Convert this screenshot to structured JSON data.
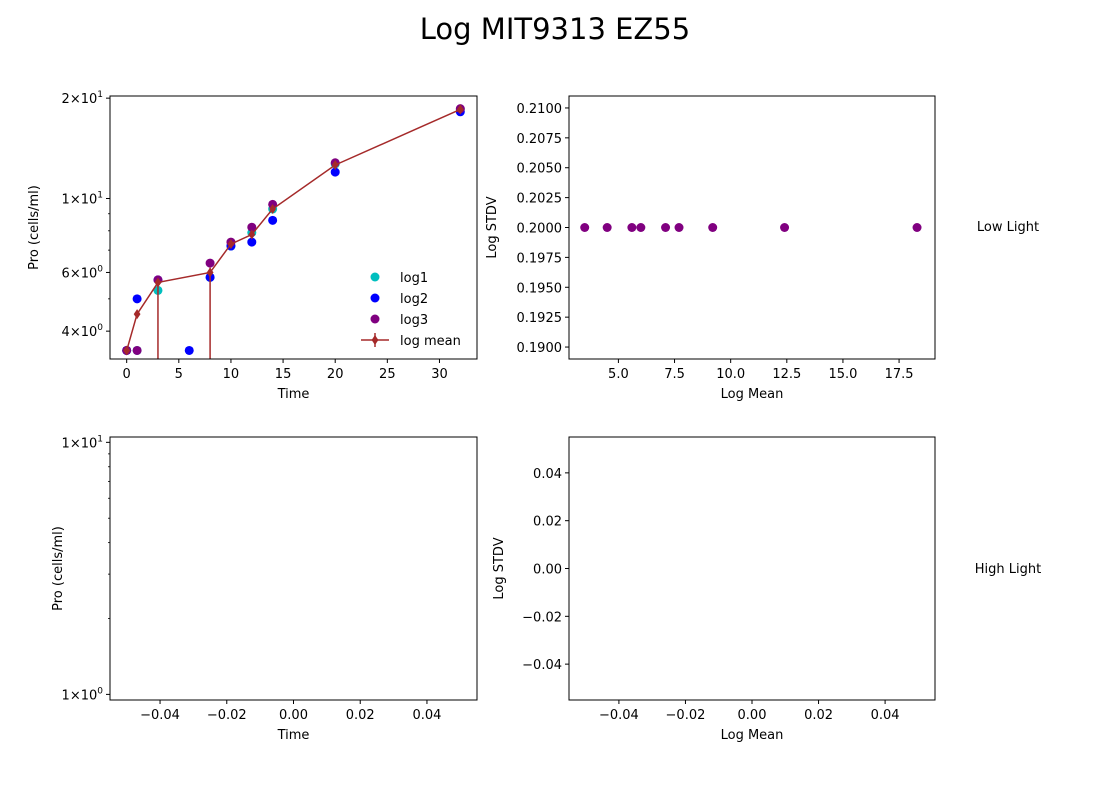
{
  "title": "Log MIT9313 EZ55",
  "chart_data": [
    {
      "type": "scatter",
      "xlabel": "Time",
      "ylabel": "Pro (cells/ml)",
      "yscale": "log",
      "xlim": [
        -1.6,
        33.6
      ],
      "ylim": [
        3.3,
        20.3
      ],
      "xticks": [
        0,
        5,
        10,
        15,
        20,
        25,
        30
      ],
      "xtick_labels": [
        "0",
        "5",
        "10",
        "15",
        "20",
        "25",
        "30"
      ],
      "yticks": [
        4,
        6,
        10,
        20
      ],
      "ytick_labels": [
        [
          "4",
          "0"
        ],
        [
          "6",
          "0"
        ],
        [
          "1",
          "1"
        ],
        [
          "2",
          "1"
        ]
      ],
      "legend": {
        "position": "lower-right",
        "entries": [
          "log1",
          "log2",
          " log3",
          "log mean"
        ]
      },
      "series": [
        {
          "name": "log1",
          "color": "#00bfbf",
          "marker": "circle",
          "x": [
            0,
            1,
            3,
            8,
            10,
            12,
            14,
            20,
            32
          ],
          "y": [
            3.5,
            3.5,
            5.3,
            5.8,
            7.2,
            7.9,
            9.3,
            12.7,
            18.5
          ]
        },
        {
          "name": "log2",
          "color": "#0000ff",
          "marker": "circle",
          "x": [
            0,
            1,
            3,
            6,
            8,
            10,
            12,
            14,
            20,
            32
          ],
          "y": [
            3.5,
            5.0,
            5.7,
            3.5,
            5.8,
            7.2,
            7.4,
            8.6,
            12.0,
            18.2
          ]
        },
        {
          "name": " log3",
          "color": "#800080",
          "marker": "circle",
          "x": [
            0,
            1,
            3,
            8,
            10,
            12,
            14,
            20,
            32
          ],
          "y": [
            3.5,
            3.5,
            5.7,
            6.4,
            7.4,
            8.2,
            9.6,
            12.8,
            18.6
          ]
        },
        {
          "name": "log mean",
          "color": "#a52a2a",
          "marker": "diamond",
          "line": true,
          "x": [
            0,
            1,
            3,
            8,
            10,
            12,
            14,
            20,
            32
          ],
          "y": [
            3.5,
            4.5,
            5.6,
            6.0,
            7.3,
            7.8,
            9.3,
            12.6,
            18.5
          ],
          "errorbars": [
            [
              0,
              3.4,
              3.6
            ],
            [
              3,
              3.3,
              5.7
            ],
            [
              8,
              3.3,
              6.2
            ]
          ]
        }
      ]
    },
    {
      "type": "scatter",
      "xlabel": "Log Mean",
      "ylabel": "Log STDV",
      "xlim": [
        2.8,
        19.1
      ],
      "ylim": [
        0.189,
        0.211
      ],
      "xticks": [
        5.0,
        7.5,
        10.0,
        12.5,
        15.0,
        17.5
      ],
      "xtick_labels": [
        "5.0",
        "7.5",
        "10.0",
        "12.5",
        "15.0",
        "17.5"
      ],
      "yticks": [
        0.19,
        0.1925,
        0.195,
        0.1975,
        0.2,
        0.2025,
        0.205,
        0.2075,
        0.21
      ],
      "ytick_labels": [
        "0.1900",
        "0.1925",
        "0.1950",
        "0.1975",
        "0.2000",
        "0.2025",
        "0.2050",
        "0.2075",
        "0.2100"
      ],
      "series": [
        {
          "color": "#800080",
          "marker": "circle",
          "x": [
            3.5,
            4.5,
            5.6,
            6.0,
            7.1,
            7.7,
            9.2,
            12.4,
            18.3
          ],
          "y": [
            0.2,
            0.2,
            0.2,
            0.2,
            0.2,
            0.2,
            0.2,
            0.2,
            0.2
          ]
        }
      ]
    },
    {
      "type": "scatter",
      "xlabel": "Time",
      "ylabel": "Pro (cells/ml)",
      "yscale": "log",
      "xlim": [
        -0.055,
        0.055
      ],
      "ylim": [
        0.95,
        10.5
      ],
      "xticks": [
        -0.04,
        -0.02,
        0.0,
        0.02,
        0.04
      ],
      "xtick_labels": [
        "−0.04",
        "−0.02",
        "0.00",
        "0.02",
        "0.04"
      ],
      "yticks": [
        1,
        10
      ],
      "ytick_labels": [
        [
          "1",
          "0"
        ],
        [
          "1",
          "1"
        ]
      ],
      "series": []
    },
    {
      "type": "scatter",
      "xlabel": "Log Mean",
      "ylabel": "Log STDV",
      "xlim": [
        -0.055,
        0.055
      ],
      "ylim": [
        -0.055,
        0.055
      ],
      "xticks": [
        -0.04,
        -0.02,
        0.0,
        0.02,
        0.04
      ],
      "xtick_labels": [
        "−0.04",
        "−0.02",
        "0.00",
        "0.02",
        "0.04"
      ],
      "yticks": [
        -0.04,
        -0.02,
        0.0,
        0.02,
        0.04
      ],
      "ytick_labels": [
        "−0.04",
        "−0.02",
        "0.00",
        "0.02",
        "0.04"
      ],
      "series": []
    }
  ],
  "row_labels": [
    "Low Light",
    "High Light"
  ]
}
